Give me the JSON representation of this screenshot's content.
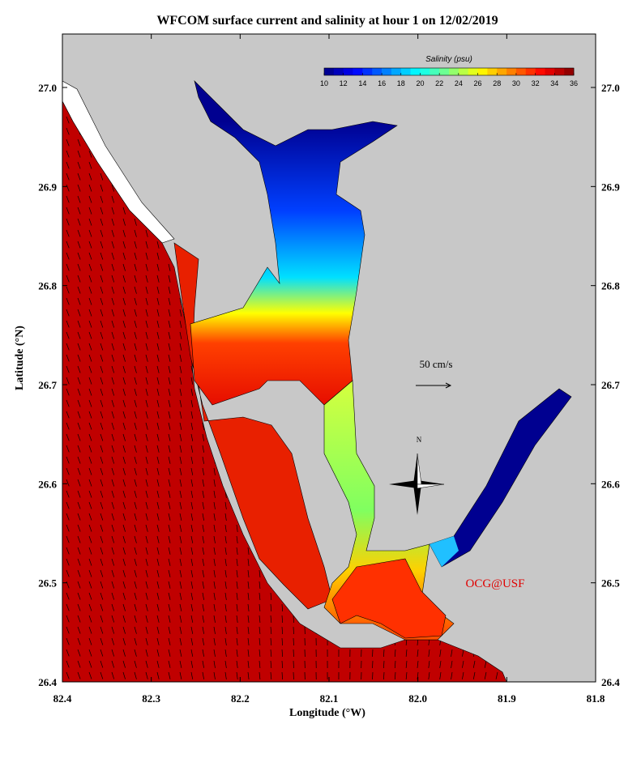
{
  "title": "WFCOM surface current and salinity at hour 1 on 12/02/2019",
  "x_axis": {
    "label": "Longitude (°W)",
    "ticks": [
      "82.4",
      "82.3",
      "82.2",
      "82.1",
      "82.0",
      "81.9",
      "81.8"
    ]
  },
  "y_axis": {
    "label": "Latitude (°N)",
    "ticks": [
      "27.0",
      "26.9",
      "26.8",
      "26.7",
      "26.6",
      "26.5",
      "26.4"
    ]
  },
  "colorbar": {
    "title": "Salinity (psu)",
    "ticks": [
      10,
      12,
      14,
      16,
      18,
      20,
      22,
      24,
      26,
      28,
      30,
      32,
      34,
      36
    ]
  },
  "scale_label": "50 cm/s",
  "compass": "N",
  "credit": "OCG@USF"
}
